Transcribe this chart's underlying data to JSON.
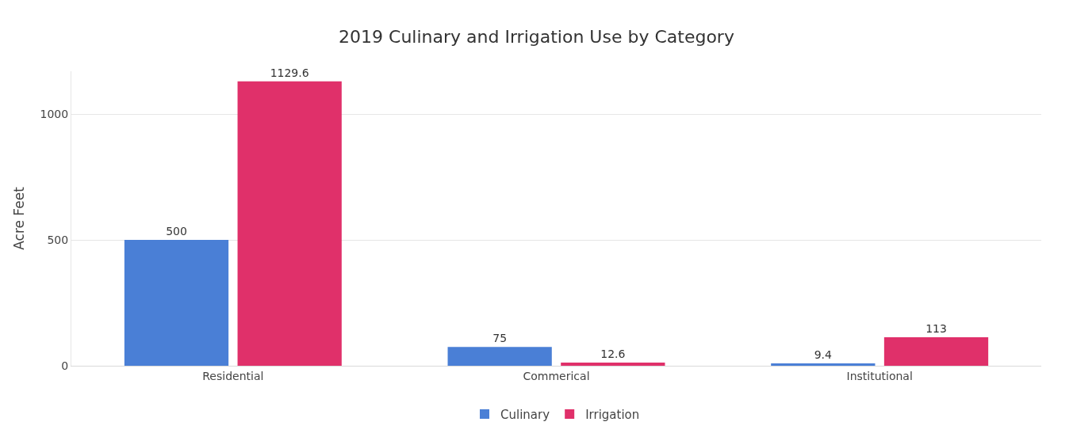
{
  "chart_data": {
    "type": "bar",
    "title": "2019 Culinary and Irrigation Use by Category",
    "ylabel": "Acre Feet",
    "categories": [
      "Residential",
      "Commerical",
      "Institutional"
    ],
    "series": [
      {
        "name": "Culinary",
        "color": "#4a7fd6",
        "values": [
          500,
          75,
          9.4
        ]
      },
      {
        "name": "Irrigation",
        "color": "#e0306a",
        "values": [
          1129.6,
          12.6,
          113
        ]
      }
    ],
    "ylim": [
      0,
      1170
    ],
    "yticks": [
      0,
      500,
      1000
    ],
    "grid": "y",
    "legend": "bottom",
    "data_labels": true
  }
}
